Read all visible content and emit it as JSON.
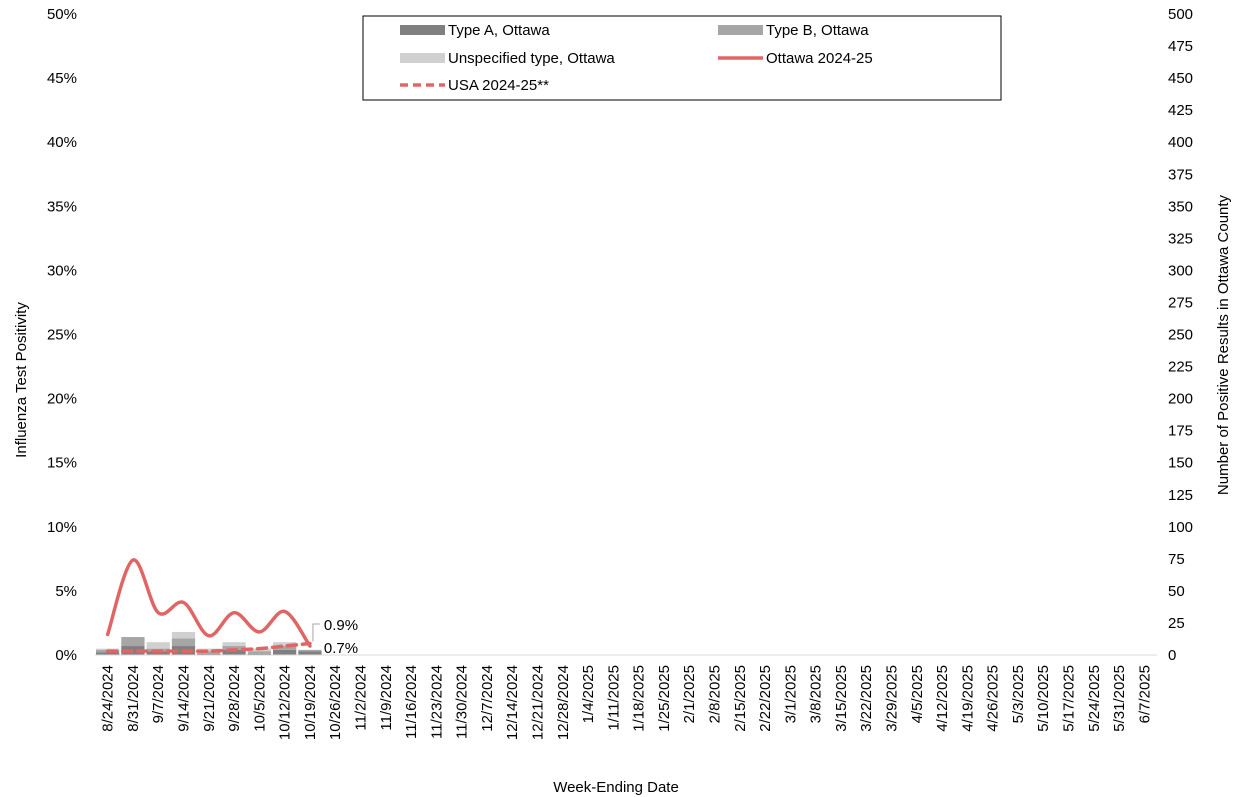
{
  "chart_data": {
    "type": "bar",
    "xlabel": "Week-Ending Date",
    "ylabel_left": "Influenza Test Positivity",
    "ylabel_right": "Number of Positive Results in Ottawa County",
    "ylim_left": [
      0,
      50
    ],
    "ylim_right": [
      0,
      500
    ],
    "left_ticks": [
      "0%",
      "5%",
      "10%",
      "15%",
      "20%",
      "25%",
      "30%",
      "35%",
      "40%",
      "45%",
      "50%"
    ],
    "right_ticks": [
      "0",
      "25",
      "50",
      "75",
      "100",
      "125",
      "150",
      "175",
      "200",
      "225",
      "250",
      "275",
      "300",
      "325",
      "350",
      "375",
      "400",
      "425",
      "450",
      "475",
      "500"
    ],
    "categories": [
      "8/24/2024",
      "8/31/2024",
      "9/7/2024",
      "9/14/2024",
      "9/21/2024",
      "9/28/2024",
      "10/5/2024",
      "10/12/2024",
      "10/19/2024",
      "10/26/2024",
      "11/2/2024",
      "11/9/2024",
      "11/16/2024",
      "11/23/2024",
      "11/30/2024",
      "12/7/2024",
      "12/14/2024",
      "12/21/2024",
      "12/28/2024",
      "1/4/2025",
      "1/11/2025",
      "1/18/2025",
      "1/25/2025",
      "2/1/2025",
      "2/8/2025",
      "2/15/2025",
      "2/22/2025",
      "3/1/2025",
      "3/8/2025",
      "3/15/2025",
      "3/22/2025",
      "3/29/2025",
      "4/5/2025",
      "4/12/2025",
      "4/19/2025",
      "4/26/2025",
      "5/3/2025",
      "5/10/2025",
      "5/17/2025",
      "5/24/2025",
      "5/31/2025",
      "6/7/2025"
    ],
    "bar_series": [
      {
        "name": "Type A, Ottawa",
        "color": "#808080",
        "values": [
          2,
          7,
          3,
          7,
          1,
          4,
          1,
          4,
          3
        ]
      },
      {
        "name": "Type B, Ottawa",
        "color": "#a6a6a6",
        "values": [
          2,
          7,
          2,
          6,
          2,
          3,
          2,
          3,
          1
        ]
      },
      {
        "name": "Unspecified type, Ottawa",
        "color": "#d0d0d0",
        "values": [
          1,
          0,
          5,
          5,
          2,
          3,
          2,
          3,
          0
        ]
      }
    ],
    "line_series": [
      {
        "name": "Ottawa 2024-25",
        "color": "#e06666",
        "dash": "solid",
        "values": [
          1.6,
          7.4,
          3.3,
          4.1,
          1.5,
          3.3,
          1.8,
          3.4,
          0.7
        ]
      },
      {
        "name": "USA 2024-25**",
        "color": "#e06666",
        "dash": "dashed",
        "values": [
          0.3,
          0.3,
          0.3,
          0.3,
          0.3,
          0.4,
          0.5,
          0.7,
          0.9
        ]
      }
    ],
    "annotations": [
      {
        "text": "0.9%",
        "series": "USA 2024-25**",
        "value": 0.9
      },
      {
        "text": "0.7%",
        "series": "Ottawa 2024-25",
        "value": 0.7
      }
    ],
    "legend_position": "top-center",
    "grid": false
  }
}
